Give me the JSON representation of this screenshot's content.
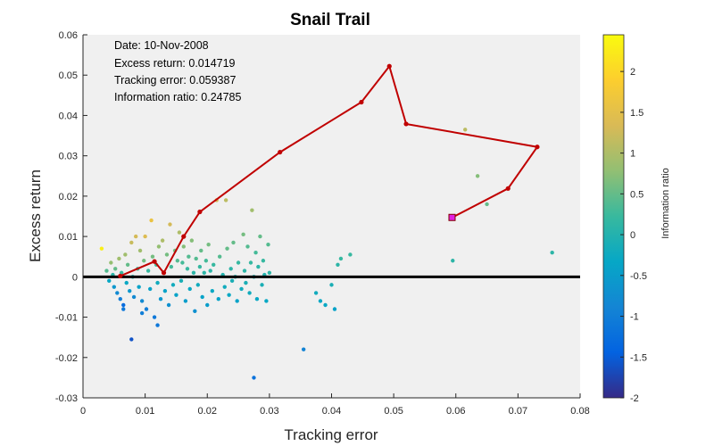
{
  "chart_data": {
    "type": "scatter",
    "title": "Snail Trail",
    "xlabel": "Tracking error",
    "ylabel": "Excess return",
    "xlim": [
      0,
      0.08
    ],
    "ylim": [
      -0.03,
      0.06
    ],
    "xticks": [
      "0",
      "0.01",
      "0.02",
      "0.03",
      "0.04",
      "0.05",
      "0.06",
      "0.07",
      "0.08"
    ],
    "yticks": [
      "-0.03",
      "-0.02",
      "-0.01",
      "0",
      "0.01",
      "0.02",
      "0.03",
      "0.04",
      "0.05",
      "0.06"
    ],
    "grid": false,
    "annotations": [
      "Date: 10-Nov-2008",
      "Excess return: 0.014719",
      "Tracking error: 0.059387",
      "Information ratio: 0.24785"
    ],
    "colorbar": {
      "label": "Information ratio",
      "clim": [
        -2,
        2.45
      ],
      "ticks": [
        "-2",
        "-1.5",
        "-1",
        "-0.5",
        "0",
        "0.5",
        "1",
        "1.5",
        "2"
      ],
      "colormap": "parula"
    },
    "trail": {
      "color": "#c00000",
      "x": [
        0.006,
        0.0115,
        0.013,
        0.0162,
        0.0188,
        0.0317,
        0.0448,
        0.0493,
        0.052,
        0.0731,
        0.0684,
        0.0594
      ],
      "y": [
        0.0002,
        0.0038,
        0.001,
        0.01,
        0.0161,
        0.0309,
        0.0433,
        0.0522,
        0.0379,
        0.0322,
        0.0219,
        0.0147
      ]
    },
    "current_point": {
      "x": 0.059387,
      "y": 0.014719,
      "color": "#e020e0"
    },
    "zero_line": {
      "y": 0
    },
    "points": [
      [
        0.003,
        0.007,
        2.3
      ],
      [
        0.0038,
        0.0015,
        0.4
      ],
      [
        0.0042,
        -0.001,
        -0.3
      ],
      [
        0.0045,
        0.0035,
        0.8
      ],
      [
        0.0048,
        0.0005,
        0.1
      ],
      [
        0.005,
        -0.0025,
        -0.6
      ],
      [
        0.0052,
        0.002,
        0.5
      ],
      [
        0.0055,
        -0.004,
        -0.8
      ],
      [
        0.0058,
        0.0045,
        0.9
      ],
      [
        0.006,
        -0.0055,
        -1.0
      ],
      [
        0.0062,
        0.001,
        0.2
      ],
      [
        0.0065,
        -0.007,
        -1.3
      ],
      [
        0.0068,
        0.0055,
        0.9
      ],
      [
        0.007,
        -0.0015,
        -0.3
      ],
      [
        0.0072,
        0.003,
        0.5
      ],
      [
        0.0075,
        -0.0035,
        -0.6
      ],
      [
        0.0078,
        0.0085,
        1.2
      ],
      [
        0.008,
        0.0,
        0.0
      ],
      [
        0.0082,
        -0.005,
        -0.8
      ],
      [
        0.0085,
        0.01,
        1.3
      ],
      [
        0.0088,
        0.002,
        0.3
      ],
      [
        0.009,
        -0.0025,
        -0.4
      ],
      [
        0.0092,
        0.0065,
        0.9
      ],
      [
        0.0095,
        -0.006,
        -0.8
      ],
      [
        0.0098,
        0.004,
        0.6
      ],
      [
        0.01,
        0.01,
        1.4
      ],
      [
        0.0102,
        -0.008,
        -1.0
      ],
      [
        0.0105,
        0.0015,
        0.2
      ],
      [
        0.0108,
        -0.003,
        -0.4
      ],
      [
        0.011,
        0.014,
        1.6
      ],
      [
        0.0112,
        0.005,
        0.6
      ],
      [
        0.0115,
        -0.01,
        -1.1
      ],
      [
        0.0118,
        0.003,
        0.3
      ],
      [
        0.012,
        -0.0015,
        -0.2
      ],
      [
        0.0122,
        0.0075,
        0.8
      ],
      [
        0.0125,
        -0.0055,
        -0.6
      ],
      [
        0.0128,
        0.009,
        1.0
      ],
      [
        0.013,
        0.001,
        0.1
      ],
      [
        0.0132,
        -0.0035,
        -0.4
      ],
      [
        0.0135,
        0.0055,
        0.6
      ],
      [
        0.0138,
        -0.007,
        -0.7
      ],
      [
        0.014,
        0.013,
        1.3
      ],
      [
        0.0142,
        0.0025,
        0.3
      ],
      [
        0.0145,
        -0.002,
        -0.2
      ],
      [
        0.0148,
        0.0065,
        0.6
      ],
      [
        0.015,
        -0.0045,
        -0.4
      ],
      [
        0.0152,
        0.004,
        0.4
      ],
      [
        0.0155,
        0.011,
        1.0
      ],
      [
        0.0158,
        -0.001,
        -0.1
      ],
      [
        0.016,
        0.0035,
        0.3
      ],
      [
        0.0162,
        0.0075,
        0.7
      ],
      [
        0.0165,
        -0.006,
        -0.5
      ],
      [
        0.0168,
        0.002,
        0.2
      ],
      [
        0.017,
        0.005,
        0.4
      ],
      [
        0.0172,
        -0.003,
        -0.3
      ],
      [
        0.0175,
        0.009,
        0.7
      ],
      [
        0.0178,
        0.001,
        0.1
      ],
      [
        0.018,
        -0.0085,
        -0.7
      ],
      [
        0.0182,
        0.0045,
        0.4
      ],
      [
        0.0185,
        -0.002,
        -0.2
      ],
      [
        0.0188,
        0.0025,
        0.2
      ],
      [
        0.019,
        0.0065,
        0.5
      ],
      [
        0.0192,
        -0.005,
        -0.4
      ],
      [
        0.0195,
        0.001,
        0.1
      ],
      [
        0.0198,
        0.004,
        0.3
      ],
      [
        0.02,
        -0.007,
        -0.5
      ],
      [
        0.0202,
        0.008,
        0.6
      ],
      [
        0.0205,
        0.0015,
        0.1
      ],
      [
        0.0208,
        -0.0035,
        -0.3
      ],
      [
        0.021,
        0.003,
        0.2
      ],
      [
        0.0215,
        0.019,
        1.3
      ],
      [
        0.0218,
        -0.0055,
        -0.4
      ],
      [
        0.022,
        0.005,
        0.4
      ],
      [
        0.0225,
        0.0005,
        0.0
      ],
      [
        0.0228,
        -0.0025,
        -0.2
      ],
      [
        0.023,
        0.019,
        1.1
      ],
      [
        0.0232,
        0.007,
        0.5
      ],
      [
        0.0235,
        -0.0045,
        -0.3
      ],
      [
        0.0238,
        0.002,
        0.1
      ],
      [
        0.024,
        -0.001,
        -0.1
      ],
      [
        0.0242,
        0.0085,
        0.5
      ],
      [
        0.0245,
        0.0,
        0.0
      ],
      [
        0.0248,
        -0.006,
        -0.4
      ],
      [
        0.025,
        0.0035,
        0.2
      ],
      [
        0.0255,
        -0.003,
        -0.2
      ],
      [
        0.0258,
        0.0105,
        0.6
      ],
      [
        0.026,
        0.0015,
        0.1
      ],
      [
        0.0262,
        -0.0015,
        -0.1
      ],
      [
        0.0265,
        0.0075,
        0.4
      ],
      [
        0.0268,
        -0.004,
        -0.2
      ],
      [
        0.027,
        0.0035,
        0.2
      ],
      [
        0.0272,
        0.0165,
        0.9
      ],
      [
        0.0275,
        0.0,
        0.0
      ],
      [
        0.0278,
        0.006,
        0.3
      ],
      [
        0.028,
        -0.0055,
        -0.3
      ],
      [
        0.0282,
        0.0025,
        0.1
      ],
      [
        0.0285,
        0.01,
        0.5
      ],
      [
        0.0288,
        -0.002,
        -0.1
      ],
      [
        0.029,
        0.004,
        0.2
      ],
      [
        0.0292,
        0.0005,
        0.0
      ],
      [
        0.0295,
        -0.006,
        -0.3
      ],
      [
        0.0298,
        0.008,
        0.4
      ],
      [
        0.0275,
        -0.025,
        -1.2
      ],
      [
        0.03,
        0.001,
        0.1
      ],
      [
        0.0078,
        -0.0155,
        -1.6
      ],
      [
        0.0065,
        -0.008,
        -1.1
      ],
      [
        0.0095,
        -0.009,
        -1.0
      ],
      [
        0.012,
        -0.012,
        -1.1
      ],
      [
        0.0355,
        -0.018,
        -0.9
      ],
      [
        0.0375,
        -0.004,
        -0.2
      ],
      [
        0.0382,
        -0.006,
        -0.3
      ],
      [
        0.039,
        -0.007,
        -0.3
      ],
      [
        0.04,
        -0.002,
        -0.1
      ],
      [
        0.0405,
        -0.008,
        -0.4
      ],
      [
        0.041,
        0.003,
        0.1
      ],
      [
        0.0415,
        0.0045,
        0.2
      ],
      [
        0.043,
        0.0055,
        0.2
      ],
      [
        0.0595,
        0.004,
        0.1
      ],
      [
        0.0615,
        0.0365,
        1.1
      ],
      [
        0.0635,
        0.025,
        0.7
      ],
      [
        0.065,
        0.018,
        0.5
      ],
      [
        0.0755,
        0.006,
        0.1
      ]
    ]
  }
}
